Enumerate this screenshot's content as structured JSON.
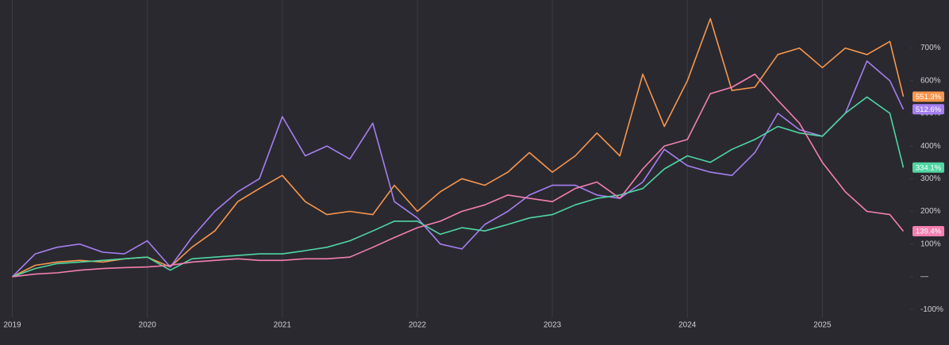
{
  "chart_data": {
    "type": "line",
    "x": [
      2019,
      2019.17,
      2019.33,
      2019.5,
      2019.67,
      2019.83,
      2020,
      2020.17,
      2020.33,
      2020.5,
      2020.67,
      2020.83,
      2021,
      2021.17,
      2021.33,
      2021.5,
      2021.67,
      2021.83,
      2022,
      2022.17,
      2022.33,
      2022.5,
      2022.67,
      2022.83,
      2023,
      2023.17,
      2023.33,
      2023.5,
      2023.67,
      2023.83,
      2024,
      2024.17,
      2024.33,
      2024.5,
      2024.67,
      2024.83,
      2025,
      2025.17,
      2025.33,
      2025.5,
      2025.6
    ],
    "xlim": [
      2018.95,
      2025.65
    ],
    "xticks": [
      2019,
      2020,
      2021,
      2022,
      2023,
      2024,
      2025
    ],
    "ylim": [
      -124,
      847
    ],
    "yticks": [
      {
        "value": 700,
        "label": "700%"
      },
      {
        "value": 600,
        "label": "600%"
      },
      {
        "value": 500,
        "label": "500%"
      },
      {
        "value": 400,
        "label": "400%"
      },
      {
        "value": 300,
        "label": "300%"
      },
      {
        "value": 200,
        "label": "200%"
      },
      {
        "value": 100,
        "label": "100%"
      },
      {
        "value": 0,
        "label": "—"
      },
      {
        "value": -100,
        "label": "-100%"
      }
    ],
    "grid": true,
    "series": [
      {
        "color": "#f7964c",
        "values": [
          0,
          35,
          45,
          50,
          45,
          55,
          60,
          30,
          90,
          140,
          230,
          270,
          310,
          230,
          190,
          200,
          190,
          280,
          200,
          260,
          300,
          280,
          320,
          380,
          320,
          370,
          440,
          370,
          620,
          460,
          600,
          790,
          570,
          580,
          680,
          700,
          640,
          700,
          680,
          720,
          551.3
        ],
        "value_labels": [
          null,
          null,
          null,
          null,
          null,
          null,
          null,
          null,
          null,
          null,
          null,
          null,
          null,
          null,
          null,
          null,
          null,
          null,
          null,
          null,
          null,
          null,
          null,
          null,
          null,
          null,
          null,
          null,
          null,
          null,
          null,
          null,
          null,
          null,
          null,
          null,
          null,
          null,
          null,
          null,
          "551.3%"
        ]
      },
      {
        "color": "#a57ff0",
        "values": [
          0,
          70,
          90,
          100,
          75,
          70,
          110,
          30,
          120,
          200,
          260,
          300,
          490,
          370,
          400,
          360,
          470,
          230,
          180,
          100,
          85,
          160,
          200,
          250,
          280,
          280,
          250,
          240,
          290,
          390,
          340,
          320,
          310,
          380,
          500,
          450,
          430,
          500,
          660,
          600,
          512.6
        ],
        "value_labels": [
          null,
          null,
          null,
          null,
          null,
          null,
          null,
          null,
          null,
          null,
          null,
          null,
          null,
          null,
          null,
          null,
          null,
          null,
          null,
          null,
          null,
          null,
          null,
          null,
          null,
          null,
          null,
          null,
          null,
          null,
          null,
          null,
          null,
          null,
          null,
          null,
          null,
          null,
          null,
          null,
          "512.6%"
        ]
      },
      {
        "color": "#4fd6a2",
        "values": [
          0,
          25,
          40,
          45,
          50,
          55,
          60,
          20,
          55,
          60,
          65,
          70,
          70,
          80,
          90,
          110,
          140,
          170,
          170,
          130,
          150,
          140,
          160,
          180,
          190,
          220,
          240,
          250,
          270,
          330,
          370,
          350,
          390,
          420,
          460,
          440,
          430,
          500,
          550,
          500,
          334.1
        ],
        "value_labels": [
          null,
          null,
          null,
          null,
          null,
          null,
          null,
          null,
          null,
          null,
          null,
          null,
          null,
          null,
          null,
          null,
          null,
          null,
          null,
          null,
          null,
          null,
          null,
          null,
          null,
          null,
          null,
          null,
          null,
          null,
          null,
          null,
          null,
          null,
          null,
          null,
          null,
          null,
          null,
          null,
          "334.1%"
        ]
      },
      {
        "color": "#f47fb0",
        "values": [
          0,
          8,
          12,
          20,
          25,
          28,
          30,
          35,
          45,
          50,
          55,
          50,
          50,
          55,
          55,
          60,
          90,
          120,
          150,
          170,
          200,
          220,
          250,
          240,
          230,
          270,
          290,
          240,
          330,
          400,
          420,
          560,
          580,
          620,
          540,
          470,
          350,
          260,
          200,
          190,
          139.4
        ],
        "value_labels": [
          null,
          null,
          null,
          null,
          null,
          null,
          null,
          null,
          null,
          null,
          null,
          null,
          null,
          null,
          null,
          null,
          null,
          null,
          null,
          null,
          null,
          null,
          null,
          null,
          null,
          null,
          null,
          null,
          null,
          null,
          null,
          null,
          null,
          null,
          null,
          null,
          null,
          null,
          null,
          null,
          "139.4%"
        ]
      }
    ]
  }
}
